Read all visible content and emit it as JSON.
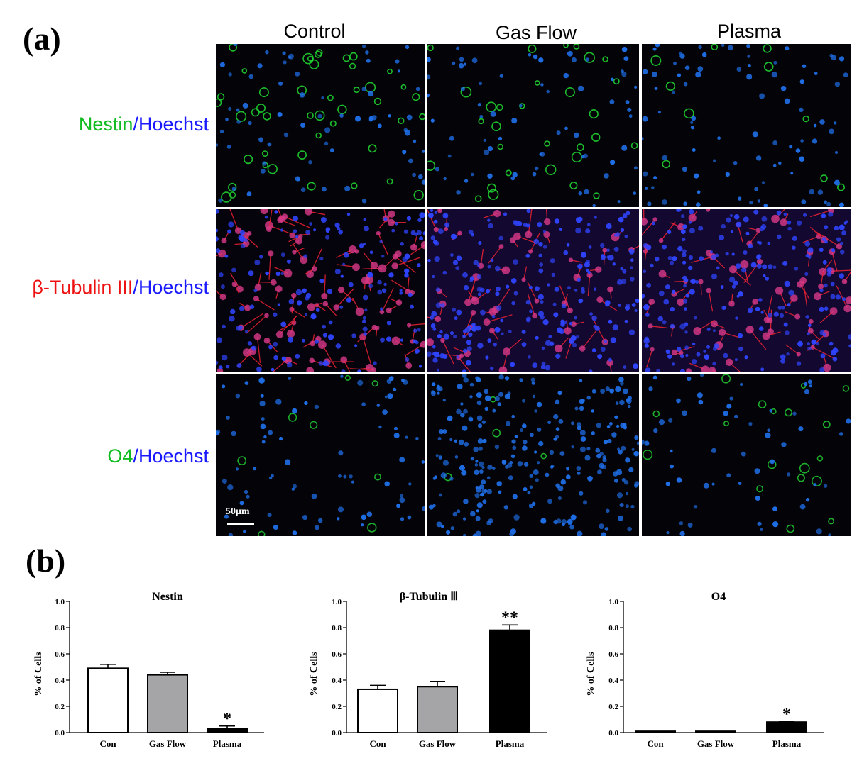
{
  "panel_a": {
    "letter": "(a)",
    "columns": [
      "Control",
      "Gas Flow",
      "Plasma"
    ],
    "rows": [
      {
        "marker": "Nestin",
        "marker_color": "#11bb22",
        "counter": "Hoechst",
        "signal": "#22dd33"
      },
      {
        "marker": "β-Tubulin III",
        "marker_color": "#ee1111",
        "counter": "Hoechst",
        "signal": "#ee2233"
      },
      {
        "marker": "O4",
        "marker_color": "#11bb22",
        "counter": "Hoechst",
        "signal": "#22cc33"
      }
    ],
    "slash": "/",
    "scale_bar_label": "50μm",
    "nucleus_color": "#1f6fe8"
  },
  "panel_b": {
    "letter": "(b)"
  },
  "chart_data": [
    {
      "type": "bar",
      "title": "Nestin",
      "categories": [
        "Con",
        "Gas Flow",
        "Plasma"
      ],
      "values": [
        0.49,
        0.44,
        0.03
      ],
      "errors": [
        0.03,
        0.02,
        0.02
      ],
      "significance": [
        "",
        "",
        "*"
      ],
      "bar_colors": [
        "#ffffff",
        "#a5a5a8",
        "#000000"
      ],
      "ylabel": "% of Cells",
      "ylim": [
        0,
        1.0
      ],
      "yticks": [
        "0.0",
        "0.2",
        "0.4",
        "0.6",
        "0.8",
        "1.0"
      ]
    },
    {
      "type": "bar",
      "title": "β-Tubulin Ⅲ",
      "categories": [
        "Con",
        "Gas Flow",
        "Plasma"
      ],
      "values": [
        0.33,
        0.35,
        0.78
      ],
      "errors": [
        0.03,
        0.04,
        0.04
      ],
      "significance": [
        "",
        "",
        "**"
      ],
      "bar_colors": [
        "#ffffff",
        "#a5a5a8",
        "#000000"
      ],
      "ylabel": "% of Cells",
      "ylim": [
        0,
        1.0
      ],
      "yticks": [
        "0.0",
        "0.2",
        "0.4",
        "0.6",
        "0.8",
        "1.0"
      ]
    },
    {
      "type": "bar",
      "title": "O4",
      "categories": [
        "Con",
        "Gas Flow",
        "Plasma"
      ],
      "values": [
        0.01,
        0.01,
        0.08
      ],
      "errors": [
        0.0,
        0.0,
        0.005
      ],
      "significance": [
        "",
        "",
        "*"
      ],
      "bar_colors": [
        "#ffffff",
        "#a5a5a8",
        "#000000"
      ],
      "ylabel": "% of Cells",
      "ylim": [
        0,
        1.0
      ],
      "yticks": [
        "0.0",
        "0.2",
        "0.4",
        "0.6",
        "0.8",
        "1.0"
      ]
    }
  ]
}
